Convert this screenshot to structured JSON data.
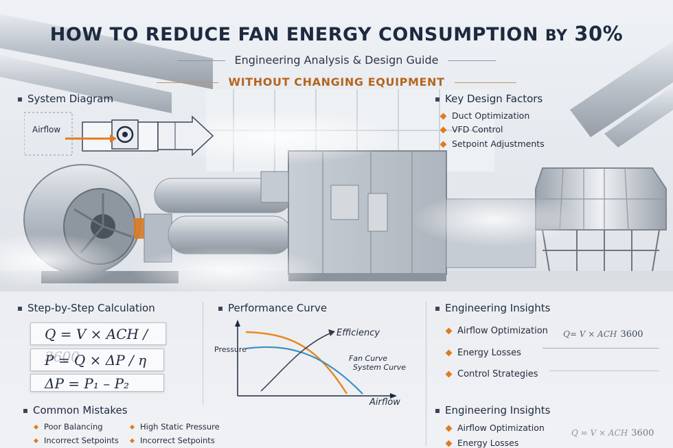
{
  "header": {
    "title_main": "HOW TO REDUCE FAN ENERGY CONSUMPTION",
    "title_by": "BY",
    "title_pct": "30%",
    "subtitle": "Engineering Analysis & Design Guide",
    "tagline": "WITHOUT CHANGING EQUIPMENT"
  },
  "system_diagram": {
    "heading": "System Diagram",
    "airflow_label": "Airflow"
  },
  "key_design": {
    "heading": "Key Design Factors",
    "items": [
      "Duct Optimization",
      "VFD Control",
      "Setpoint Adjustments"
    ]
  },
  "calculation": {
    "heading": "Step-by-Step Calculation",
    "formula1": "Q = V × ACH / 3600",
    "formula2": "P = Q × ΔP / η",
    "formula3": "ΔP = P₁ – P₂"
  },
  "performance": {
    "heading": "Performance Curve",
    "y_label": "Pressure",
    "x_label": "Airflow",
    "efficiency_label": "Efficiency",
    "fan_curve_label": "Fan Curve",
    "system_curve_label": "System Curve"
  },
  "insights1": {
    "heading": "Engineering Insights",
    "items": [
      "Airflow Optimization",
      "Energy Losses",
      "Control Strategies"
    ],
    "formula": "Q= V × ACH",
    "formula_value": "3600"
  },
  "mistakes": {
    "heading": "Common Mistakes",
    "col1": [
      "Poor Balancing",
      "Incorrect Setpoints"
    ],
    "col2": [
      "High Static Pressure",
      "Incorrect Setpoints"
    ]
  },
  "insights2": {
    "heading": "Engineering Insights",
    "items": [
      "Airflow Optimization",
      "Energy Losses"
    ],
    "formula": "Q = V × ACH",
    "formula_value": "3600"
  },
  "colors": {
    "accent": "#e07b1f",
    "fan_curve": "#e8891e",
    "system_curve": "#3a8fc0",
    "title": "#1d2a3f"
  }
}
